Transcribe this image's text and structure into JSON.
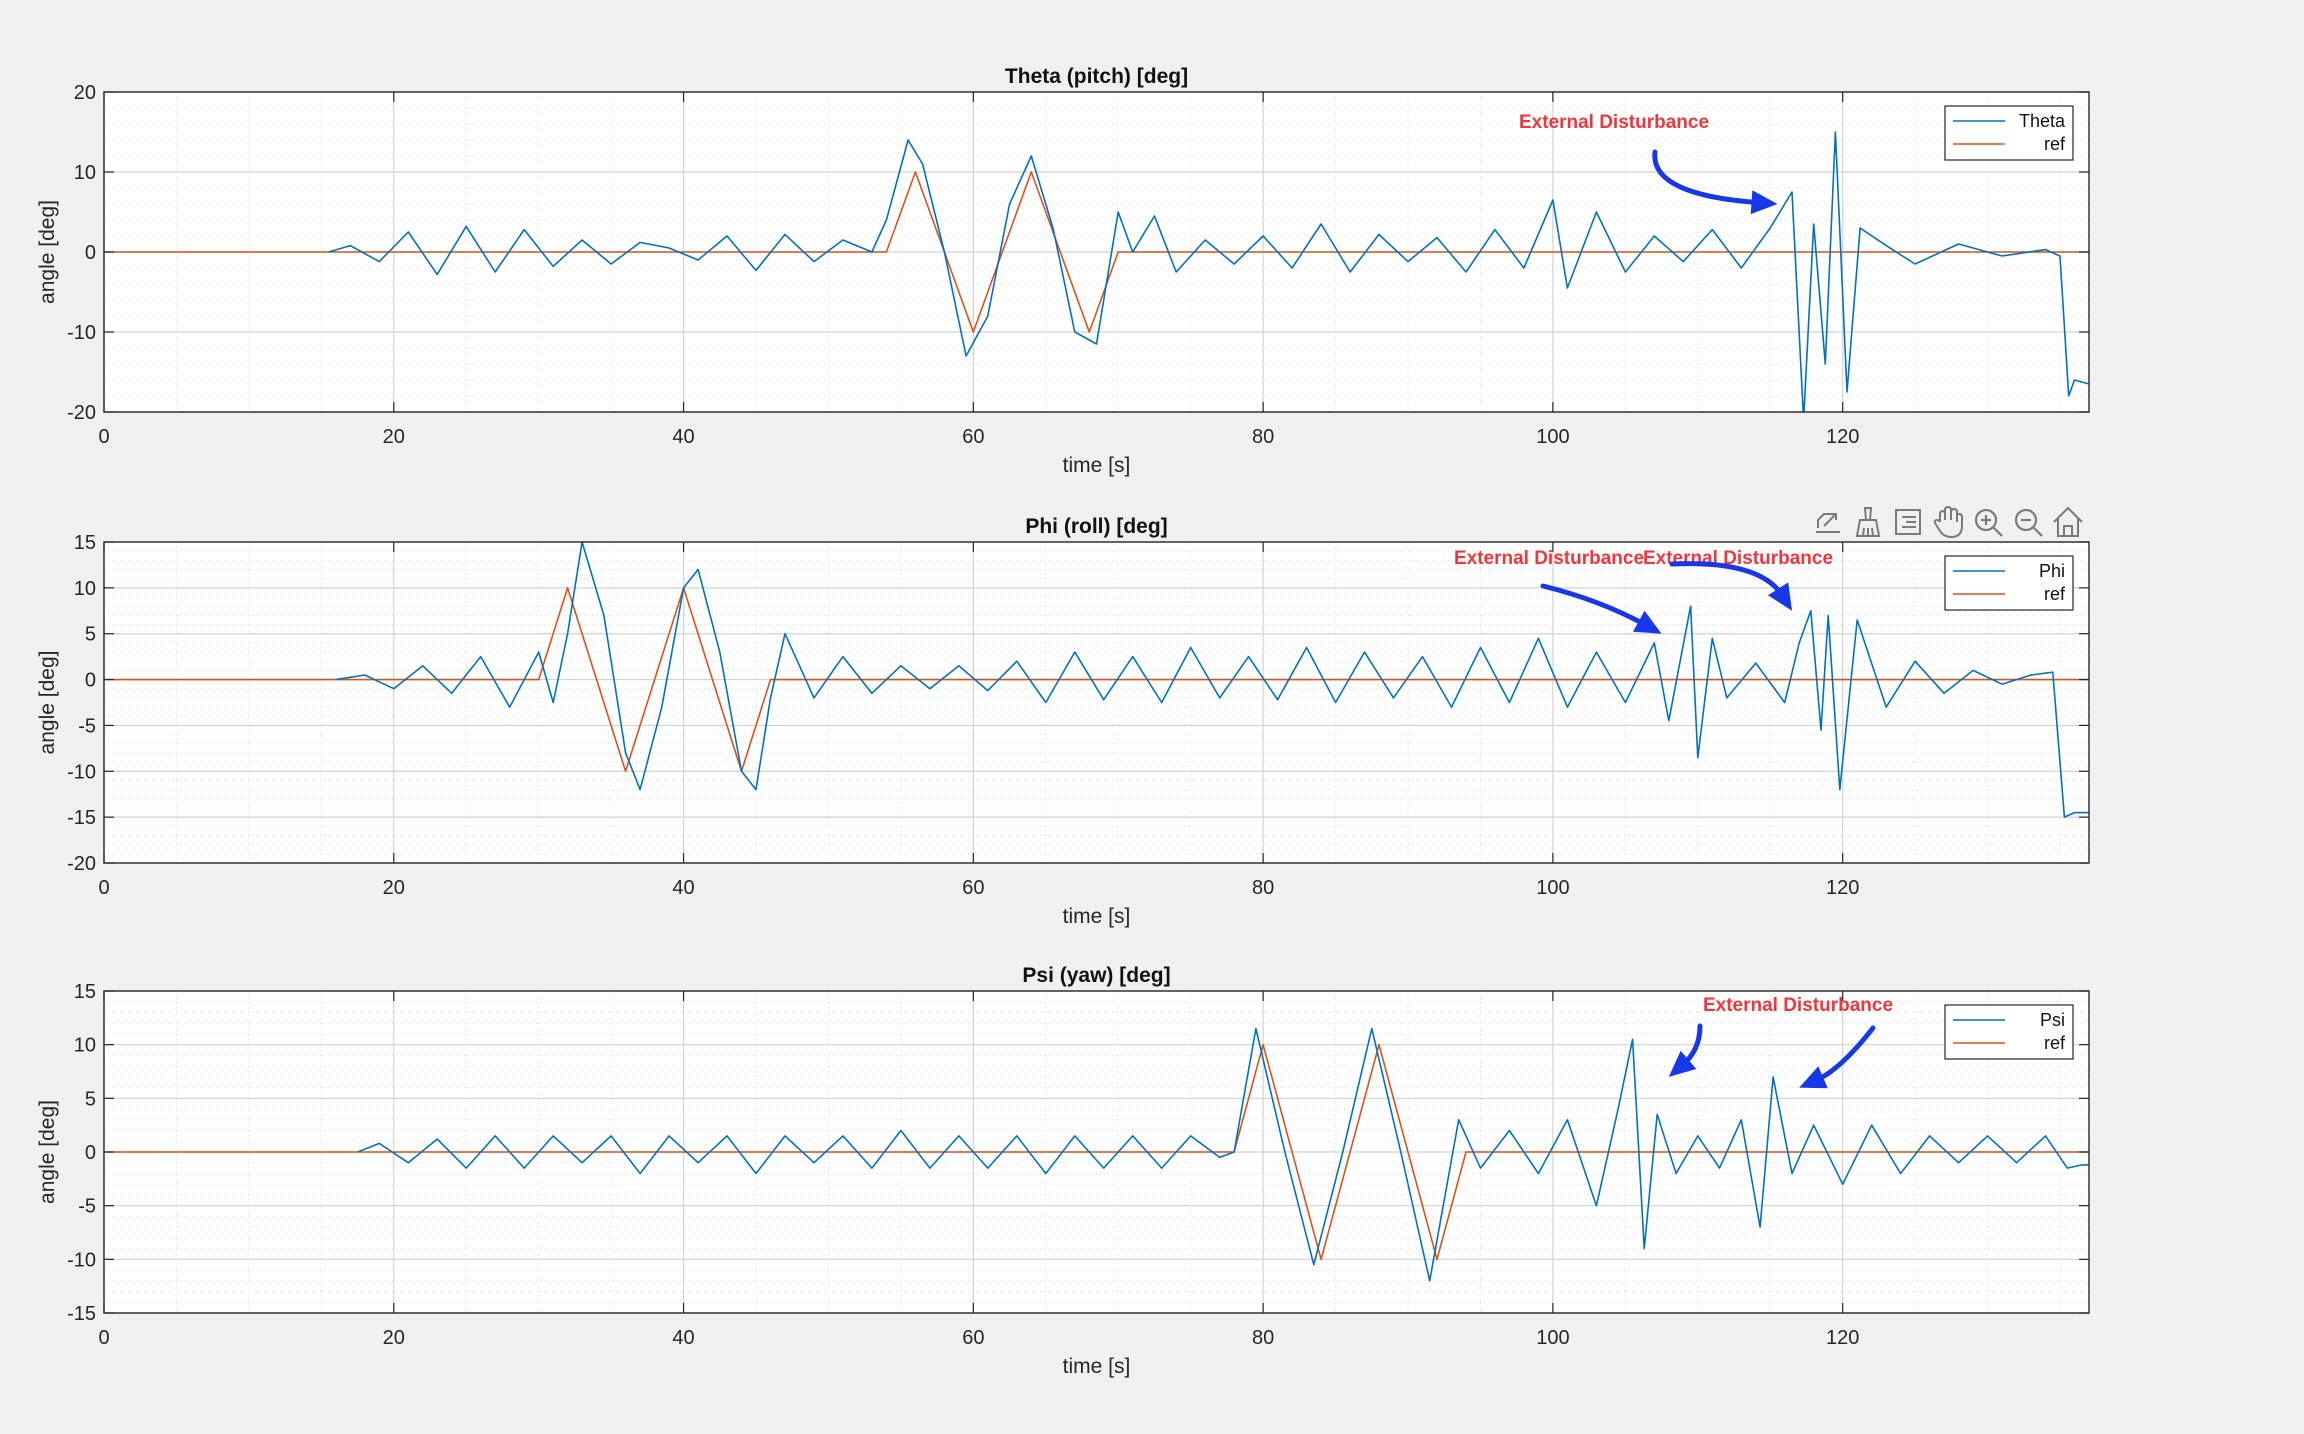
{
  "toolbar": {
    "buttons": [
      "export-icon",
      "brush-icon",
      "data-tips-icon",
      "pan-icon",
      "zoom-in-icon",
      "zoom-out-icon",
      "home-icon"
    ]
  },
  "colors": {
    "signal": "#0072BD",
    "reference": "#D95319",
    "annotation_text": "#F0363C",
    "arrow": "#1638E8",
    "background": "#f0f0f0",
    "axes": "#ffffff"
  },
  "chart_data": [
    {
      "type": "line",
      "title": "Theta (pitch) [deg]",
      "xlabel": "time [s]",
      "ylabel": "angle [deg]",
      "xlim": [
        0,
        137
      ],
      "ylim": [
        -20,
        20
      ],
      "xticks": [
        0,
        20,
        40,
        60,
        80,
        100,
        120
      ],
      "yticks": [
        -20,
        -10,
        0,
        10,
        20
      ],
      "xtick_labels": [
        "0",
        "20",
        "40",
        "60",
        "80",
        "100",
        "120"
      ],
      "ytick_labels": [
        "-20",
        "-10",
        "0",
        "10",
        "20"
      ],
      "grid": true,
      "minor_grid": true,
      "legend": {
        "position": "top-right",
        "entries": [
          "Theta",
          "ref"
        ]
      },
      "series": [
        {
          "name": "Theta",
          "color": "#0072BD",
          "x": [
            15.5,
            17,
            19,
            21,
            23,
            25,
            27,
            29,
            31,
            33,
            35,
            37,
            39,
            41,
            43,
            45,
            47,
            49,
            51,
            53,
            54,
            55.5,
            56.5,
            58,
            59.5,
            61,
            62.5,
            64,
            65.5,
            67,
            68.5,
            70,
            71,
            72.5,
            74,
            76,
            78,
            80,
            82,
            84,
            86,
            88,
            90,
            92,
            94,
            96,
            98,
            100,
            101,
            103,
            105,
            107,
            109,
            111,
            113,
            115,
            116.5,
            117.3,
            118,
            118.8,
            119.5,
            120.3,
            121.2,
            123,
            125,
            128,
            131,
            134,
            135,
            135.6,
            136,
            137
          ],
          "y": [
            0,
            0.8,
            -1.2,
            2.5,
            -2.8,
            3.2,
            -2.5,
            2.8,
            -1.8,
            1.5,
            -1.5,
            1.2,
            0.5,
            -1,
            2,
            -2.3,
            2.2,
            -1.2,
            1.5,
            0,
            4,
            14,
            11,
            0,
            -13,
            -8,
            6,
            12,
            3,
            -10,
            -11.5,
            5,
            0,
            4.5,
            -2.5,
            1.5,
            -1.5,
            2,
            -2,
            3.5,
            -2.5,
            2.2,
            -1.2,
            1.8,
            -2.5,
            2.8,
            -2,
            6.5,
            -4.5,
            5,
            -2.5,
            2,
            -1.2,
            2.8,
            -2,
            3,
            7.5,
            -21,
            3.5,
            -14,
            15,
            -17.5,
            3,
            0.8,
            -1.5,
            1,
            -0.5,
            0.3,
            -0.5,
            -18,
            -16,
            -16.5
          ]
        },
        {
          "name": "ref",
          "color": "#D95319",
          "x": [
            0,
            54,
            56,
            58,
            60,
            62,
            64,
            66,
            68,
            70,
            137
          ],
          "y": [
            0,
            0,
            10,
            0,
            -10,
            0,
            10,
            0,
            -10,
            0,
            0
          ]
        }
      ],
      "annotations": [
        {
          "text": "External Disturbance",
          "points_to": [
            115.5,
            6
          ]
        }
      ]
    },
    {
      "type": "line",
      "title": "Phi (roll) [deg]",
      "xlabel": "time [s]",
      "ylabel": "angle [deg]",
      "xlim": [
        0,
        137
      ],
      "ylim": [
        -20,
        15
      ],
      "xticks": [
        0,
        20,
        40,
        60,
        80,
        100,
        120
      ],
      "yticks": [
        -20,
        -15,
        -10,
        -5,
        0,
        5,
        10,
        15
      ],
      "xtick_labels": [
        "0",
        "20",
        "40",
        "60",
        "80",
        "100",
        "120"
      ],
      "ytick_labels": [
        "-20",
        "-15",
        "-10",
        "-5",
        "0",
        "5",
        "10",
        "15"
      ],
      "grid": true,
      "minor_grid": true,
      "legend": {
        "position": "top-right",
        "entries": [
          "Phi",
          "ref"
        ]
      },
      "series": [
        {
          "name": "Phi",
          "color": "#0072BD",
          "x": [
            16,
            18,
            20,
            22,
            24,
            26,
            28,
            30,
            31,
            32,
            33,
            34.5,
            36,
            37,
            38.5,
            40,
            41,
            42.5,
            44,
            45,
            46,
            47,
            49,
            51,
            53,
            55,
            57,
            59,
            61,
            63,
            65,
            67,
            69,
            71,
            73,
            75,
            77,
            79,
            81,
            83,
            85,
            87,
            89,
            91,
            93,
            95,
            97,
            99,
            101,
            103,
            105,
            107,
            108,
            109.5,
            110,
            111,
            112,
            114,
            116,
            117,
            117.8,
            118.5,
            119,
            119.8,
            121,
            123,
            125,
            127,
            129,
            131,
            133,
            134.5,
            135.3,
            136,
            137
          ],
          "y": [
            0,
            0.5,
            -1,
            1.5,
            -1.5,
            2.5,
            -3,
            3,
            -2.5,
            5,
            15,
            7,
            -8,
            -12,
            -3,
            10,
            12,
            3,
            -10,
            -12,
            -2,
            5,
            -2,
            2.5,
            -1.5,
            1.5,
            -1,
            1.5,
            -1.2,
            2,
            -2.5,
            3,
            -2.2,
            2.5,
            -2.5,
            3.5,
            -2,
            2.5,
            -2.2,
            3.5,
            -2.5,
            3,
            -2,
            2.5,
            -3,
            3.5,
            -2.5,
            4.5,
            -3,
            3,
            -2.5,
            4,
            -4.5,
            8,
            -8.5,
            4.5,
            -2,
            1.8,
            -2.5,
            4,
            7.5,
            -5.5,
            7,
            -12,
            6.5,
            -3,
            2,
            -1.5,
            1,
            -0.5,
            0.5,
            0.8,
            -15,
            -14.5,
            -14.5
          ]
        },
        {
          "name": "ref",
          "color": "#D95319",
          "x": [
            0,
            30,
            32,
            34,
            36,
            38,
            40,
            42,
            44,
            46,
            137
          ],
          "y": [
            0,
            0,
            10,
            0,
            -10,
            0,
            10,
            0,
            -10,
            0,
            0
          ]
        }
      ],
      "annotations": [
        {
          "text": "External Disturbance",
          "points_to": [
            107.5,
            5
          ]
        },
        {
          "text": "External Disturbance",
          "points_to": [
            116.5,
            7.5
          ]
        }
      ]
    },
    {
      "type": "line",
      "title": "Psi (yaw) [deg]",
      "xlabel": "time [s]",
      "ylabel": "angle [deg]",
      "xlim": [
        0,
        137
      ],
      "ylim": [
        -15,
        15
      ],
      "xticks": [
        0,
        20,
        40,
        60,
        80,
        100,
        120
      ],
      "yticks": [
        -15,
        -10,
        -5,
        0,
        5,
        10,
        15
      ],
      "xtick_labels": [
        "0",
        "20",
        "40",
        "60",
        "80",
        "100",
        "120"
      ],
      "ytick_labels": [
        "-15",
        "-10",
        "-5",
        "0",
        "5",
        "10",
        "15"
      ],
      "grid": true,
      "minor_grid": true,
      "legend": {
        "position": "top-right",
        "entries": [
          "Psi",
          "ref"
        ]
      },
      "series": [
        {
          "name": "Psi",
          "color": "#0072BD",
          "x": [
            17.5,
            19,
            21,
            23,
            25,
            27,
            29,
            31,
            33,
            35,
            37,
            39,
            41,
            43,
            45,
            47,
            49,
            51,
            53,
            55,
            57,
            59,
            61,
            63,
            65,
            67,
            69,
            71,
            73,
            75,
            77,
            78,
            79.5,
            81.5,
            83.5,
            85.5,
            87.5,
            89.5,
            91.5,
            93.5,
            95,
            97,
            99,
            101,
            103,
            104.5,
            105.5,
            106.3,
            107.2,
            108.5,
            110,
            111.5,
            113,
            114.3,
            115.2,
            116.5,
            118,
            120,
            122,
            124,
            126,
            128,
            130,
            132,
            134,
            135.5,
            136.5,
            137
          ],
          "y": [
            0,
            0.8,
            -1,
            1.2,
            -1.5,
            1.5,
            -1.5,
            1.5,
            -1,
            1.5,
            -2,
            1.5,
            -1,
            1.5,
            -2,
            1.5,
            -1,
            1.5,
            -1.5,
            2,
            -1.5,
            1.5,
            -1.5,
            1.5,
            -2,
            1.5,
            -1.5,
            1.5,
            -1.5,
            1.5,
            -0.5,
            0,
            11.5,
            0,
            -10.5,
            0,
            11.5,
            0,
            -12,
            3,
            -1.5,
            2,
            -2,
            3,
            -5,
            4,
            10.5,
            -9,
            3.5,
            -2,
            1.5,
            -1.5,
            3,
            -7,
            7,
            -2,
            2.5,
            -3,
            2.5,
            -2,
            1.5,
            -1,
            1.5,
            -1,
            1.5,
            -1.5,
            -1.2,
            -1.2
          ]
        },
        {
          "name": "ref",
          "color": "#D95319",
          "x": [
            0,
            78,
            80,
            82,
            84,
            86,
            88,
            90,
            92,
            94,
            137
          ],
          "y": [
            0,
            0,
            10,
            0,
            -10,
            0,
            10,
            0,
            -10,
            0,
            0
          ]
        }
      ],
      "annotations": [
        {
          "text": "External Disturbance",
          "points_to": [
            108,
            7
          ]
        },
        {
          "text": "External Disturbance",
          "points_to": [
            117,
            6
          ]
        }
      ]
    }
  ]
}
